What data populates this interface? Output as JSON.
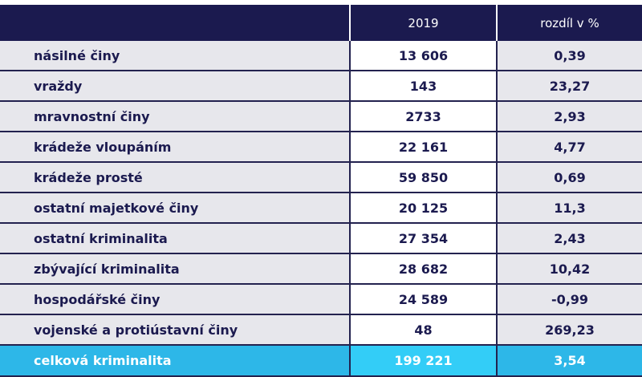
{
  "header": {
    "label": "",
    "year": "2019",
    "diff": "rozdíl v %"
  },
  "rows": [
    {
      "label": "násilné činy",
      "value": "13 606",
      "diff": "0,39"
    },
    {
      "label": "vraždy",
      "value": "143",
      "diff": "23,27"
    },
    {
      "label": "mravnostní činy",
      "value": "2733",
      "diff": "2,93"
    },
    {
      "label": "krádeže vloupáním",
      "value": "22 161",
      "diff": "4,77"
    },
    {
      "label": "krádeže prosté",
      "value": "59 850",
      "diff": "0,69"
    },
    {
      "label": "ostatní majetkové činy",
      "value": "20 125",
      "diff": "11,3"
    },
    {
      "label": "ostatní kriminalita",
      "value": "27 354",
      "diff": "2,43"
    },
    {
      "label": "zbývající kriminalita",
      "value": "28 682",
      "diff": "10,42"
    },
    {
      "label": "hospodářské činy",
      "value": "24 589",
      "diff": "-0,99"
    },
    {
      "label": "vojenské a protiústavní činy",
      "value": "48",
      "diff": "269,23"
    }
  ],
  "total": {
    "label": "celková kriminalita",
    "value": "199 221",
    "diff": "3,54"
  },
  "colors": {
    "header": "#1b1a4f",
    "total": "#2db7e8",
    "total_highlight": "#33cdf7",
    "row_bg": "#e7e7ec"
  }
}
